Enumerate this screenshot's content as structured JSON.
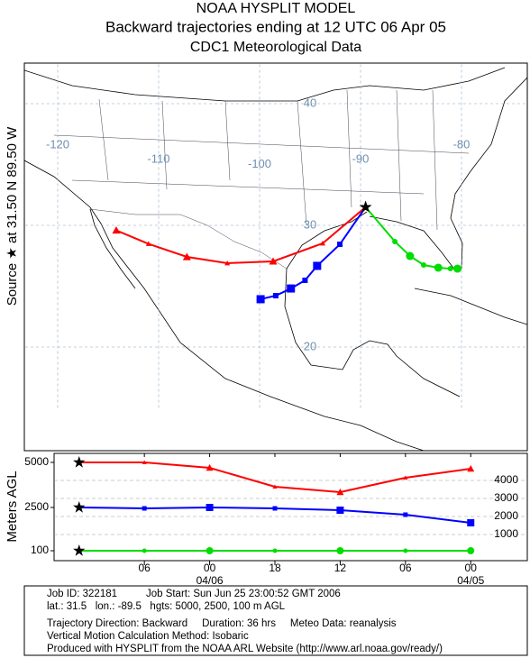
{
  "header": {
    "title": "NOAA HYSPLIT MODEL",
    "subtitle": "Backward trajectories ending at 12 UTC 06 Apr 05",
    "data_source": "CDC1 Meteorological Data"
  },
  "source_label": "Source ★ at 31.50 N 89.50 W",
  "chart_data": {
    "type": "trajectory",
    "y_label": "Meters AGL",
    "x": [
      0,
      6,
      12,
      18,
      24,
      30,
      36
    ],
    "xlim": [
      -2.3,
      41.2
    ],
    "xticks": [
      {
        "value": 6,
        "label": "06"
      },
      {
        "value": 12,
        "label": "00"
      },
      {
        "value": 18,
        "label": "18"
      },
      {
        "value": 24,
        "label": "12"
      },
      {
        "value": 30,
        "label": "06"
      },
      {
        "value": 36,
        "label": "00"
      }
    ],
    "xtick_dates": [
      {
        "value": 12,
        "label": "04/06"
      },
      {
        "value": 36,
        "label": "04/05"
      }
    ],
    "ylim": [
      -450,
      5500
    ],
    "yticks_left": [
      5000,
      2500,
      100
    ],
    "yticks": [
      1000,
      2000,
      3000,
      4000
    ],
    "map_lon_ticks": [
      -120,
      -110,
      -100,
      -90,
      -80
    ],
    "map_lat_ticks": [
      40,
      30,
      20
    ],
    "series": [
      {
        "color": "#ff0000",
        "marker": "triangle",
        "lat": [
          31.5,
          28.52,
          27.04,
          26.89,
          27.41,
          28.48,
          29.59
        ],
        "lon": [
          -89.5,
          -93.75,
          -98.66,
          -103.2,
          -107.2,
          -111.0,
          -114.2
        ],
        "values": [
          5000,
          5000,
          4700,
          3650,
          3350,
          4150,
          4650
        ]
      },
      {
        "color": "#0000ff",
        "marker": "square",
        "lat": [
          31.5,
          28.44,
          26.67,
          25.48,
          24.81,
          24.22,
          23.93
        ],
        "lon": [
          -89.5,
          -92.05,
          -94.3,
          -95.5,
          -96.9,
          -98.4,
          -99.9
        ],
        "values": [
          2500,
          2450,
          2500,
          2450,
          2350,
          2100,
          1650
        ]
      },
      {
        "color": "#00dd00",
        "marker": "circle",
        "lat": [
          31.5,
          28.67,
          27.48,
          26.74,
          26.52,
          26.44,
          26.44
        ],
        "lon": [
          -89.5,
          -86.6,
          -85.1,
          -83.75,
          -82.3,
          -81.1,
          -80.4
        ],
        "values": [
          100,
          100,
          100,
          100,
          100,
          100,
          100
        ]
      }
    ]
  },
  "footer": [
    "Job ID: 322181          Job Start: Sun Jun 25 23:00:52 GMT 2006",
    "lat.: 31.5   lon.: -89.5   hgts: 5000, 2500, 100 m AGL",
    "Trajectory Direction: Backward     Duration: 36 hrs     Meteo Data: reanalysis",
    "Vertical Motion Calculation Method: Isobaric",
    "Produced with HYSPLIT from the NOAA ARL Website (http://www.arl.noaa.gov/ready/)"
  ]
}
